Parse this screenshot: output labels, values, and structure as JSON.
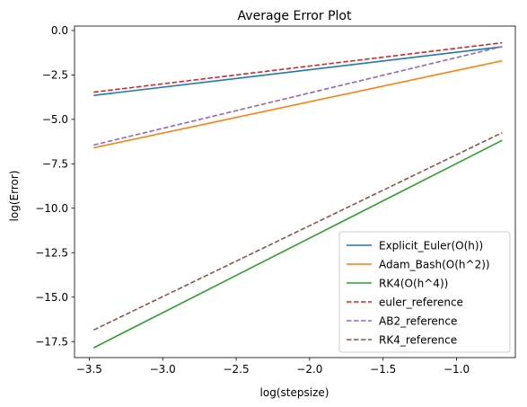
{
  "chart_data": {
    "type": "line",
    "title": "Average Error Plot",
    "xlabel": "log(stepsize)",
    "ylabel": "log(Error)",
    "xlim": [
      -3.6,
      -0.6
    ],
    "ylim": [
      -18.4,
      0.25
    ],
    "xticks": [
      {
        "value": -3.5,
        "label": "−3.5"
      },
      {
        "value": -3.0,
        "label": "−3.0"
      },
      {
        "value": -2.5,
        "label": "−2.5"
      },
      {
        "value": -2.0,
        "label": "−2.0"
      },
      {
        "value": -1.5,
        "label": "−1.5"
      },
      {
        "value": -1.0,
        "label": "−1.0"
      }
    ],
    "yticks": [
      {
        "value": 0.0,
        "label": "0.0"
      },
      {
        "value": -2.5,
        "label": "−2.5"
      },
      {
        "value": -5.0,
        "label": "−5.0"
      },
      {
        "value": -7.5,
        "label": "−7.5"
      },
      {
        "value": -10.0,
        "label": "−10.0"
      },
      {
        "value": -12.5,
        "label": "−12.5"
      },
      {
        "value": -15.0,
        "label": "−15.0"
      },
      {
        "value": -17.5,
        "label": "−17.5"
      }
    ],
    "grid": false,
    "legend_position": "lower right",
    "series": [
      {
        "name": "Explicit_Euler(O(h))",
        "color": "#1f77b4",
        "style": "solid",
        "x": [
          -3.47,
          -0.69
        ],
        "y": [
          -3.65,
          -0.92
        ]
      },
      {
        "name": "Adam_Bash(O(h^2))",
        "color": "#ff7f0e",
        "style": "solid",
        "x": [
          -3.47,
          -0.69
        ],
        "y": [
          -6.6,
          -1.7
        ]
      },
      {
        "name": "RK4(O(h^4))",
        "color": "#2ca02c",
        "style": "solid",
        "x": [
          -3.47,
          -0.69
        ],
        "y": [
          -17.85,
          -6.18
        ]
      },
      {
        "name": "euler_reference",
        "color": "#d62728",
        "style": "dashed",
        "x": [
          -3.47,
          -0.69
        ],
        "y": [
          -3.47,
          -0.69
        ]
      },
      {
        "name": "AB2_reference",
        "color": "#9467bd",
        "style": "dashed",
        "x": [
          -3.47,
          -0.69
        ],
        "y": [
          -6.44,
          -0.9
        ]
      },
      {
        "name": "RK4_reference",
        "color": "#8c564b",
        "style": "dashed",
        "x": [
          -3.47,
          -0.69
        ],
        "y": [
          -16.85,
          -5.75
        ]
      }
    ]
  }
}
